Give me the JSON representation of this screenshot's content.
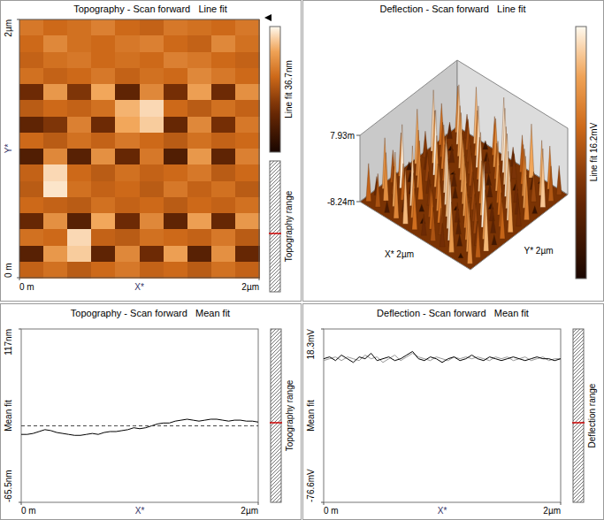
{
  "chart_data": [
    {
      "type": "heatmap",
      "title": "Topography - Scan forward   Line fit",
      "xlabel": "X*",
      "ylabel": "Y*",
      "xlim": [
        0,
        2
      ],
      "ylim": [
        0,
        2
      ],
      "xticks": [
        {
          "value": 0,
          "label": "0 m"
        },
        {
          "value": 2,
          "label": "2µm"
        }
      ],
      "yticks": [
        {
          "value": 0,
          "label": "0 m"
        },
        {
          "value": 2,
          "label": "2µm"
        }
      ],
      "cells": [
        [
          24,
          22,
          23,
          25,
          22,
          21,
          24,
          23,
          22,
          24
        ],
        [
          22,
          26,
          23,
          22,
          24,
          25,
          22,
          21,
          26,
          23
        ],
        [
          21,
          23,
          24,
          22,
          23,
          22,
          25,
          24,
          22,
          21
        ],
        [
          23,
          21,
          22,
          24,
          21,
          23,
          22,
          26,
          24,
          22
        ],
        [
          12,
          28,
          14,
          30,
          10,
          26,
          13,
          29,
          12,
          27
        ],
        [
          20,
          22,
          21,
          23,
          31,
          34,
          22,
          20,
          23,
          21
        ],
        [
          10,
          14,
          25,
          12,
          30,
          33,
          11,
          26,
          13,
          24
        ],
        [
          22,
          20,
          23,
          21,
          24,
          22,
          20,
          23,
          21,
          22
        ],
        [
          8,
          26,
          9,
          27,
          11,
          24,
          8,
          28,
          10,
          25
        ],
        [
          21,
          34,
          22,
          20,
          23,
          21,
          22,
          24,
          20,
          22
        ],
        [
          20,
          35,
          23,
          21,
          22,
          20,
          24,
          21,
          23,
          20
        ],
        [
          22,
          21,
          20,
          23,
          21,
          22,
          20,
          22,
          21,
          23
        ],
        [
          11,
          27,
          9,
          30,
          12,
          26,
          10,
          29,
          11,
          28
        ],
        [
          23,
          22,
          34,
          21,
          20,
          23,
          22,
          21,
          24,
          20
        ],
        [
          9,
          28,
          33,
          10,
          26,
          12,
          29,
          9,
          27,
          11
        ],
        [
          21,
          23,
          20,
          22,
          24,
          21,
          22,
          20,
          23,
          21
        ]
      ],
      "colorbar_range": [
        0,
        36.7
      ],
      "colorbar_label": "Line fit 36.7nm",
      "range_label": "Topography range"
    },
    {
      "type": "surface3d",
      "title": "Deflection - Scan forward   Line fit",
      "xlabel": "X* 2µm",
      "ylabel": "Y* 2µm",
      "zlim": [
        -8.24,
        7.93
      ],
      "zticks": [
        {
          "value": 7.93,
          "label": "7.93m"
        },
        {
          "value": -8.24,
          "label": "-8.24m"
        }
      ],
      "cells": [
        [
          3.1,
          -2.4,
          5.6,
          -6.1,
          1.2,
          7.2,
          -3.5,
          0.8,
          4.9,
          -7.4,
          2.3,
          -1.1
        ],
        [
          -4.2,
          6.3,
          -0.7,
          2.8,
          -5.9,
          3.6,
          7.5,
          -2.2,
          1.4,
          -4.8,
          5.2,
          0.3
        ],
        [
          1.9,
          -7.1,
          4.1,
          -1.6,
          6.8,
          -3.2,
          0.5,
          5.9,
          -6.6,
          3.3,
          -0.9,
          6.1
        ],
        [
          6.7,
          0.2,
          -3.8,
          5.3,
          -1.3,
          2.1,
          -5.4,
          3.9,
          7.1,
          -2.7,
          4.4,
          -6.3
        ],
        [
          -1.8,
          4.6,
          2.5,
          -7.7,
          3.4,
          -0.4,
          6.2,
          -4.6,
          0.9,
          5.7,
          -3.1,
          2.7
        ],
        [
          5.1,
          -3.3,
          7.6,
          0.6,
          -4.4,
          4.8,
          -1.9,
          2.2,
          -6.8,
          1.5,
          6.5,
          -2.5
        ],
        [
          -6.2,
          2.9,
          -1.2,
          4.3,
          6.1,
          -5.1,
          3.7,
          -0.6,
          5.4,
          -3.6,
          0.1,
          4.7
        ],
        [
          2.4,
          -5.6,
          3.2,
          -2.9,
          0.4,
          6.9,
          -7.2,
          4.5,
          -1.5,
          7.8,
          -4.1,
          1.1
        ],
        [
          -0.3,
          7.3,
          -4.7,
          1.7,
          -2.1,
          3.1,
          5.8,
          -3.4,
          2.6,
          -0.8,
          3.8,
          -5.7
        ],
        [
          4.2,
          -1.4,
          0.7,
          6.4,
          -6.4,
          -0.2,
          2.0,
          6.6,
          -4.3,
          2.9,
          -2.3,
          5.5
        ],
        [
          -3.7,
          3.5,
          5.0,
          -4.0,
          2.7,
          -6.9,
          1.3,
          -1.7,
          7.0,
          -5.2,
          4.0,
          0.6
        ],
        [
          1.0,
          -0.1,
          -5.3,
          3.0,
          5.6,
          1.8,
          -3.0,
          0.0,
          -2.6,
          4.1,
          -7.0,
          3.4
        ]
      ],
      "colorbar_range": [
        -8.24,
        7.93
      ],
      "colorbar_label": "Line fit 16.2mV"
    },
    {
      "type": "line",
      "title": "Topography - Scan forward   Mean fit",
      "xlabel": "X*",
      "ylabel": "Mean fit",
      "x": [
        0,
        0.05,
        0.1,
        0.15,
        0.2,
        0.25,
        0.3,
        0.35,
        0.4,
        0.45,
        0.5,
        0.55,
        0.6,
        0.65,
        0.7,
        0.75,
        0.8,
        0.85,
        0.9,
        0.95,
        1,
        1.05,
        1.1,
        1.15,
        1.2,
        1.25,
        1.3,
        1.35,
        1.4,
        1.45,
        1.5,
        1.55,
        1.6,
        1.65,
        1.7,
        1.75,
        1.8,
        1.85,
        1.9,
        1.95,
        2
      ],
      "xlim": [
        0,
        2
      ],
      "xticks": [
        {
          "value": 0,
          "label": "0 m"
        },
        {
          "value": 2,
          "label": "2µm"
        }
      ],
      "ylim": [
        -65.5,
        117
      ],
      "yticks": [
        {
          "value": -65.5,
          "label": "-65.5nm"
        },
        {
          "value": 117,
          "label": "117nm"
        }
      ],
      "series": [
        {
          "color": "#000000",
          "line_style": "solid",
          "values": [
            6,
            6,
            7,
            9,
            11,
            10,
            8,
            7,
            6,
            5,
            5,
            6,
            7,
            6,
            8,
            9,
            9,
            10,
            11,
            13,
            12,
            13,
            15,
            17,
            18,
            18,
            20,
            21,
            22,
            21,
            20,
            21,
            22,
            22,
            21,
            20,
            21,
            21,
            20,
            20,
            19
          ]
        },
        {
          "color": "#444444",
          "line_style": "dashed",
          "values": [
            15,
            15,
            15,
            15,
            15,
            15,
            15,
            15,
            15,
            15,
            15,
            15,
            15,
            15,
            15,
            15,
            15,
            15,
            15,
            15,
            15,
            15,
            15,
            15,
            15,
            15,
            15,
            15,
            15,
            15,
            15,
            15,
            15,
            15,
            15,
            15,
            15,
            15,
            15,
            15,
            15
          ]
        }
      ],
      "range_label": "Topography range"
    },
    {
      "type": "line",
      "title": "Deflection - Scan forward   Mean fit",
      "xlabel": "X*",
      "ylabel": "Mean fit",
      "x": [
        0,
        0.05,
        0.1,
        0.15,
        0.2,
        0.25,
        0.3,
        0.35,
        0.4,
        0.45,
        0.5,
        0.55,
        0.6,
        0.65,
        0.7,
        0.75,
        0.8,
        0.85,
        0.9,
        0.95,
        1,
        1.05,
        1.1,
        1.15,
        1.2,
        1.25,
        1.3,
        1.35,
        1.4,
        1.45,
        1.5,
        1.55,
        1.6,
        1.65,
        1.7,
        1.75,
        1.8,
        1.85,
        1.9,
        1.95,
        2
      ],
      "xlim": [
        0,
        2
      ],
      "xticks": [
        {
          "value": 0,
          "label": "0 m"
        },
        {
          "value": 2,
          "label": "2µm"
        }
      ],
      "ylim": [
        -76.6,
        18.3
      ],
      "yticks": [
        {
          "value": -76.6,
          "label": "-76.6mV"
        },
        {
          "value": 18.3,
          "label": "18.3mV"
        }
      ],
      "series": [
        {
          "color": "#999999",
          "line_style": "solid",
          "values": [
            1,
            2,
            3,
            1,
            3,
            2,
            1,
            4,
            2,
            3,
            0,
            2,
            4,
            1,
            3,
            5,
            3,
            2,
            1,
            3,
            2,
            1,
            3,
            2,
            3,
            2,
            3,
            2,
            1,
            3,
            2,
            3,
            1,
            2,
            3,
            1,
            2,
            3,
            1,
            2,
            2
          ]
        },
        {
          "color": "#000000",
          "line_style": "solid",
          "values": [
            2,
            3,
            1,
            4,
            2,
            0,
            3,
            2,
            5,
            1,
            2,
            3,
            1,
            2,
            4,
            6,
            2,
            1,
            3,
            2,
            0,
            2,
            3,
            1,
            2,
            4,
            2,
            1,
            3,
            2,
            1,
            2,
            3,
            2,
            1,
            2,
            3,
            2,
            2,
            1,
            2
          ]
        }
      ],
      "range_label": "Deflection range"
    }
  ]
}
